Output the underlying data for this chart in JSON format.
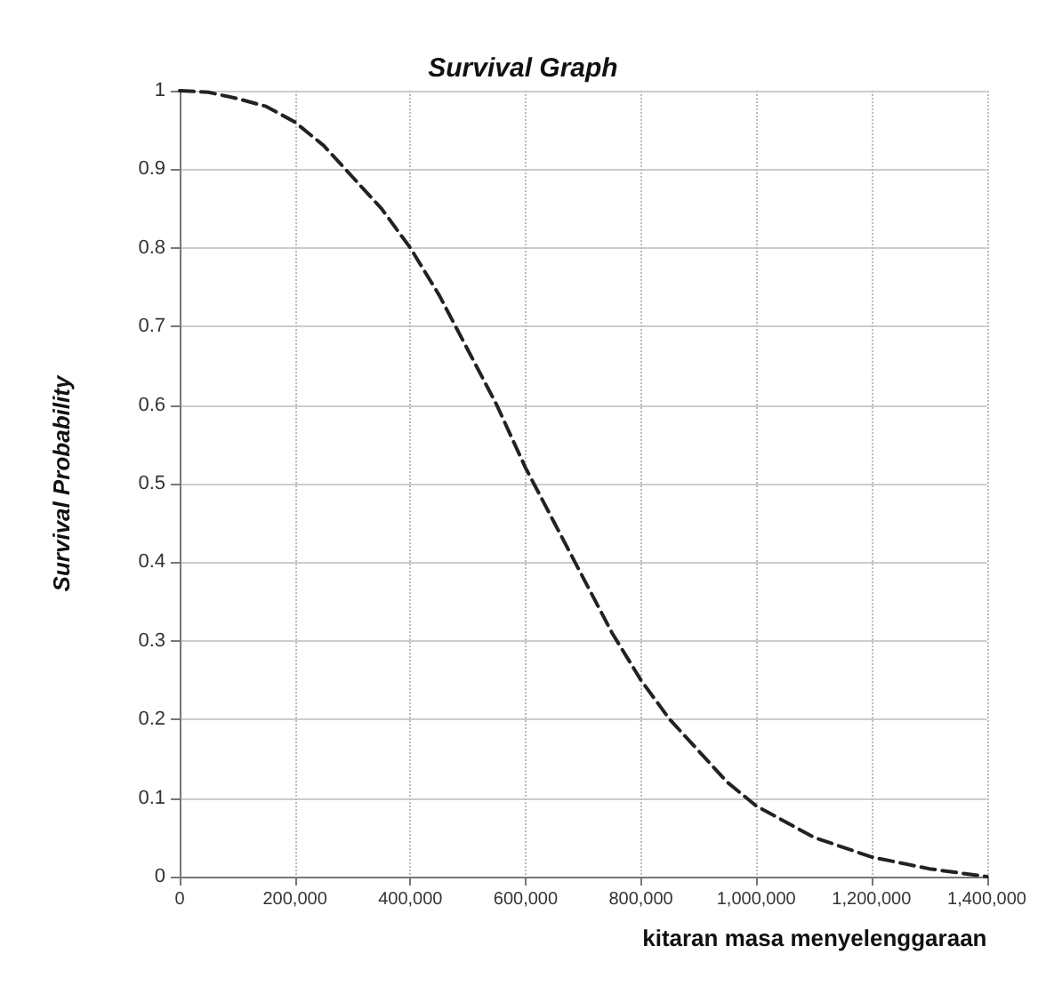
{
  "chart_data": {
    "type": "line",
    "title": "Survival Graph",
    "xlabel": "kitaran masa menyelenggaraan",
    "ylabel": "Survival Probability",
    "x": [
      0,
      50000,
      100000,
      150000,
      200000,
      250000,
      300000,
      350000,
      400000,
      450000,
      500000,
      550000,
      600000,
      650000,
      700000,
      750000,
      800000,
      850000,
      900000,
      950000,
      1000000,
      1100000,
      1200000,
      1300000,
      1400000
    ],
    "series": [
      {
        "color": "#222222",
        "values": [
          1,
          0.998,
          0.99,
          0.98,
          0.96,
          0.93,
          0.89,
          0.85,
          0.8,
          0.74,
          0.67,
          0.6,
          0.52,
          0.45,
          0.38,
          0.31,
          0.25,
          0.2,
          0.16,
          0.12,
          0.09,
          0.05,
          0.025,
          0.01,
          0.0
        ]
      }
    ],
    "xlim": [
      0,
      1400000
    ],
    "xticks": [
      {
        "value": 0,
        "label": "0"
      },
      {
        "value": 200000,
        "label": "200,000"
      },
      {
        "value": 400000,
        "label": "400,000"
      },
      {
        "value": 600000,
        "label": "600,000"
      },
      {
        "value": 800000,
        "label": "800,000"
      },
      {
        "value": 1000000,
        "label": "1,000,000"
      },
      {
        "value": 1200000,
        "label": "1,200,000"
      },
      {
        "value": 1400000,
        "label": "1,400,000"
      }
    ],
    "ylim": [
      0,
      1
    ],
    "yticks": [
      0,
      0.1,
      0.2,
      0.3,
      0.4,
      0.5,
      0.6,
      0.7,
      0.8,
      0.9,
      1
    ],
    "grid": true,
    "marker": "none",
    "line_style": "dashed"
  }
}
